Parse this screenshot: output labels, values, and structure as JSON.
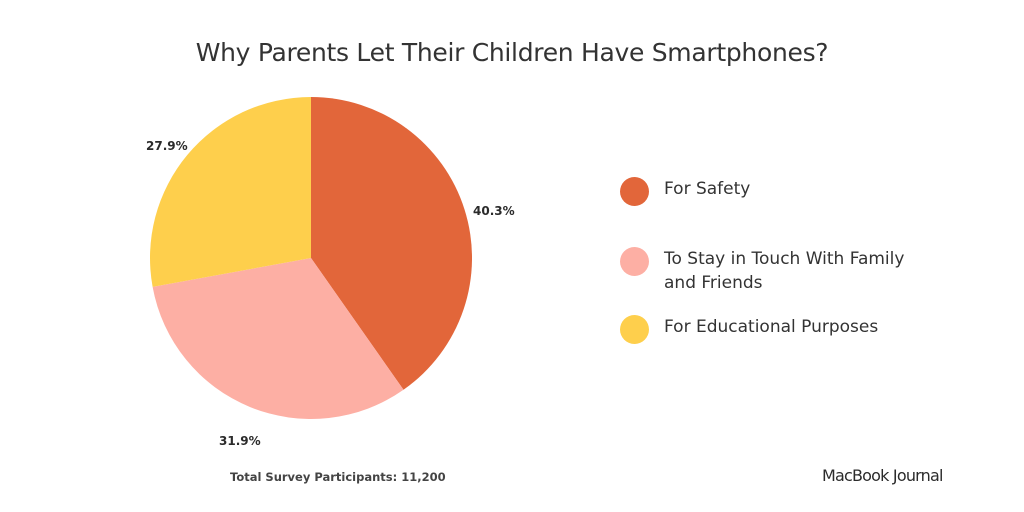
{
  "chart_data": {
    "type": "pie",
    "title": "Why Parents Let Their Children Have Smartphones?",
    "categories": [
      "For Safety",
      "To Stay in Touch With Family and Friends",
      "For Educational Purposes"
    ],
    "values": [
      40.3,
      31.9,
      27.9
    ],
    "labels": [
      "40.3%",
      "31.9%",
      "27.9%"
    ],
    "colors": [
      "#e2663a",
      "#fdafa4",
      "#fecf4c"
    ],
    "start": "12 o'clock",
    "direction": "clockwise",
    "legend_position": "right"
  },
  "footnote": "Total Survey Participants: 11,200",
  "brand": "MacBook Journal"
}
